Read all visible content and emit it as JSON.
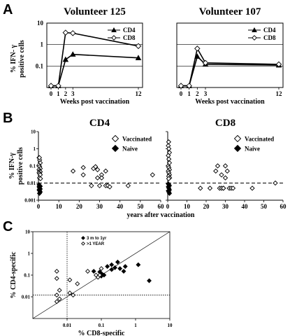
{
  "panels": {
    "a": "A",
    "b": "B",
    "c": "C"
  },
  "chart_data": [
    {
      "type": "line",
      "title": "Volunteer 125",
      "xlabel": "Weeks post vaccination",
      "ylabel": "% IFN- γ positive cells",
      "yscale": "log",
      "xlim": [
        0,
        12
      ],
      "ylim": [
        0.01,
        10
      ],
      "grid": "horizontal",
      "legend": "top-right",
      "xticks": [
        "0",
        "1",
        "2",
        "3",
        "12"
      ],
      "yticks": [
        "0.1",
        "1",
        "10"
      ],
      "series": [
        {
          "name": "CD4",
          "marker": "filled-triangle",
          "x": [
            0,
            1,
            2,
            3,
            12
          ],
          "y": [
            0.012,
            0.012,
            0.2,
            0.35,
            0.24
          ]
        },
        {
          "name": "CD8",
          "marker": "open-diamond",
          "x": [
            0,
            1,
            2,
            3,
            12
          ],
          "y": [
            0.012,
            0.012,
            3.6,
            3.4,
            0.85
          ]
        }
      ]
    },
    {
      "type": "line",
      "title": "Volunteer 107",
      "xlabel": "Weeks post vaccination",
      "ylabel": "",
      "yscale": "log",
      "xlim": [
        0,
        12
      ],
      "ylim": [
        0.01,
        10
      ],
      "grid": "horizontal",
      "legend": "top-right",
      "xticks": [
        "0",
        "1",
        "2",
        "3",
        "12"
      ],
      "yticks": [],
      "series": [
        {
          "name": "CD4",
          "marker": "filled-triangle",
          "x": [
            0,
            1,
            2,
            3,
            12
          ],
          "y": [
            0.012,
            0.012,
            0.28,
            0.12,
            0.11
          ]
        },
        {
          "name": "CD8",
          "marker": "open-diamond",
          "x": [
            0,
            1,
            2,
            3,
            12
          ],
          "y": [
            0.012,
            0.012,
            0.65,
            0.14,
            0.12
          ]
        }
      ]
    },
    {
      "type": "scatter",
      "title": "CD4",
      "xlabel": "",
      "ylabel": "% IFN-γ positive cells",
      "yscale": "log",
      "xlim": [
        0,
        60
      ],
      "ylim": [
        0.001,
        10
      ],
      "xticks": [
        "0",
        "10",
        "20",
        "30",
        "40",
        "50",
        "60"
      ],
      "yticks": [
        "0.001",
        "0.01",
        "0.1",
        "1",
        "10"
      ],
      "reference_line": 0.01,
      "legend": "top-right",
      "series": [
        {
          "name": "Vaccinated",
          "marker": "open-diamond",
          "x": [
            0.3,
            0.6,
            0.9,
            0.3,
            0.6,
            0.9,
            0.3,
            0.6,
            0.9,
            0.3,
            0.6,
            0.9,
            0.5,
            1.0,
            0.5,
            17,
            22,
            22,
            27,
            28,
            29,
            31,
            26,
            30,
            33,
            33,
            29,
            31,
            34,
            35,
            44,
            56
          ],
          "y": [
            0.3,
            0.22,
            0.15,
            0.11,
            0.09,
            0.07,
            0.06,
            0.05,
            0.045,
            0.04,
            0.035,
            0.03,
            0.02,
            0.018,
            0.3,
            0.05,
            0.08,
            0.03,
            0.07,
            0.09,
            0.06,
            0.03,
            0.007,
            0.007,
            0.007,
            0.05,
            0.02,
            0.02,
            0.007,
            0.006,
            0.007,
            0.03
          ]
        },
        {
          "name": "Naive",
          "marker": "filled-diamond",
          "x": [
            0.3,
            0.6,
            0.9,
            0.3,
            0.6,
            0.9,
            0.3,
            0.6,
            0.9,
            0.5
          ],
          "y": [
            0.008,
            0.007,
            0.0065,
            0.006,
            0.005,
            0.0045,
            0.004,
            0.0035,
            0.003,
            0.0025
          ]
        }
      ]
    },
    {
      "type": "scatter",
      "title": "CD8",
      "xlabel": "",
      "ylabel": "",
      "yscale": "log",
      "xlim": [
        0,
        60
      ],
      "ylim": [
        0.001,
        10
      ],
      "xticks": [
        "0",
        "10",
        "20",
        "30",
        "40",
        "50",
        "60"
      ],
      "yticks": [],
      "reference_line": 0.01,
      "legend": "top-right",
      "series": [
        {
          "name": "Vaccinated",
          "marker": "open-diamond",
          "x": [
            0.3,
            0.6,
            0.9,
            0.3,
            0.6,
            0.9,
            0.3,
            0.6,
            0.9,
            0.3,
            0.6,
            0.9,
            0.5,
            0.5,
            1.0,
            0.5,
            17,
            22,
            25,
            26,
            27,
            28,
            28,
            29,
            29,
            30,
            30,
            31,
            32,
            33,
            34,
            44,
            56
          ],
          "y": [
            1.5,
            1.0,
            0.6,
            0.4,
            0.25,
            0.15,
            0.1,
            0.08,
            0.06,
            0.05,
            0.04,
            0.03,
            0.025,
            2.5,
            0.02,
            0.018,
            0.005,
            0.005,
            0.05,
            0.1,
            0.005,
            0.005,
            0.03,
            0.005,
            0.005,
            0.02,
            0.1,
            0.05,
            0.005,
            0.005,
            0.005,
            0.005,
            0.01
          ]
        },
        {
          "name": "Naive",
          "marker": "filled-diamond",
          "x": [
            0.3,
            0.6,
            0.9,
            0.3,
            0.6,
            0.9,
            0.3,
            0.6,
            0.9
          ],
          "y": [
            0.009,
            0.008,
            0.007,
            0.006,
            0.005,
            0.004,
            0.0035,
            0.003,
            0.0025
          ]
        }
      ]
    },
    {
      "shared_xlabel": "years after vaccination"
    },
    {
      "type": "scatter",
      "title": "",
      "xlabel": "% CD8-specific",
      "ylabel": "% CD4-specific",
      "xscale": "log",
      "yscale": "log",
      "xlim": [
        0.001,
        10
      ],
      "ylim": [
        0.001,
        10
      ],
      "xticks": [
        "0.01",
        "0.1",
        "1",
        "10"
      ],
      "yticks": [
        "0.01",
        "0.1",
        "1",
        "10"
      ],
      "reference_lines": {
        "x": 0.01,
        "y": 0.012
      },
      "diagonal": true,
      "legend": "top-left",
      "series": [
        {
          "name": "3 m to 1yr",
          "marker": "filled-diamond",
          "x": [
            0.06,
            0.09,
            0.1,
            0.12,
            0.15,
            0.2,
            0.25,
            0.3,
            0.45,
            0.5,
            1.2,
            2.5,
            0.2,
            0.35,
            0.1
          ],
          "y": [
            0.15,
            0.14,
            0.12,
            0.1,
            0.25,
            0.3,
            0.22,
            0.4,
            0.15,
            0.25,
            0.3,
            0.055,
            0.18,
            0.2,
            0.09
          ]
        },
        {
          "name": ">1 YEAR",
          "marker": "open-diamond",
          "x": [
            0.005,
            0.005,
            0.005,
            0.005,
            0.006,
            0.006,
            0.012,
            0.012,
            0.015,
            0.04,
            0.07,
            0.08,
            0.09,
            0.1,
            0.02
          ],
          "y": [
            0.15,
            0.07,
            0.012,
            0.006,
            0.02,
            0.008,
            0.06,
            0.015,
            0.012,
            0.15,
            0.1,
            0.08,
            0.1,
            0.2,
            0.04
          ]
        }
      ]
    }
  ]
}
